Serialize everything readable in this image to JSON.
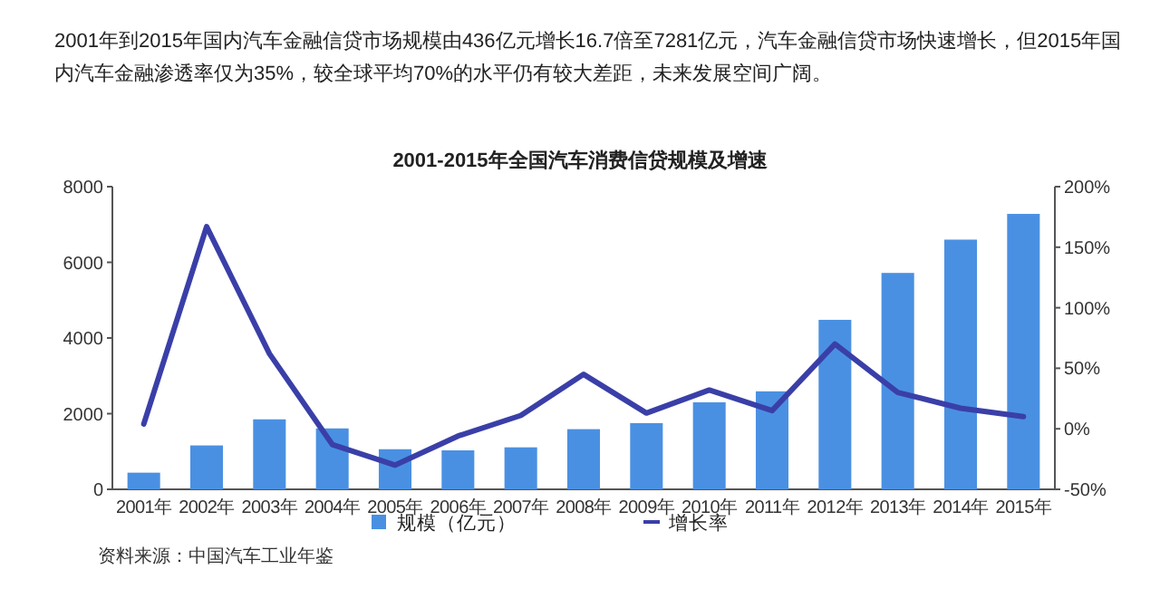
{
  "chart_data": {
    "type": "bar",
    "title": "2001-2015年全国汽车消费信贷规模及增速",
    "annotations": [
      "2001年到2015年国内汽车金融信贷市场规模由436亿元增长16.7倍至7281亿元，汽车金融信贷市场快速增长，但2015年国内汽车金融渗透率仅为35%，较全球平均70%的水平仍有较大差距，未来发展空间广阔。",
      "资料来源：中国汽车工业年鉴"
    ],
    "categories": [
      "2001年",
      "2002年",
      "2003年",
      "2004年",
      "2005年",
      "2006年",
      "2007年",
      "2008年",
      "2009年",
      "2010年",
      "2011年",
      "2012年",
      "2013年",
      "2014年",
      "2015年"
    ],
    "series": [
      {
        "name": "规模（亿元）",
        "color": "#4a90e2",
        "values": [
          440,
          1160,
          1850,
          1610,
          1060,
          1030,
          1110,
          1590,
          1750,
          2300,
          2590,
          4480,
          5720,
          6600,
          7280
        ]
      },
      {
        "name": "增长率",
        "type": "line",
        "axis": "y2",
        "color": "#3a3fa8",
        "values": [
          4,
          167,
          62,
          -13,
          -30,
          -6,
          11,
          45,
          13,
          32,
          15,
          70,
          30,
          17,
          10
        ]
      }
    ],
    "ylim": [
      0,
      8000
    ],
    "yticks": [
      0,
      2000,
      4000,
      6000,
      8000
    ],
    "y2lim": [
      -50,
      200
    ],
    "y2ticks": [
      {
        "value": -50,
        "label": "-50%"
      },
      {
        "value": 0,
        "label": "0%"
      },
      {
        "value": 50,
        "label": "50%"
      },
      {
        "value": 100,
        "label": "100%"
      },
      {
        "value": 150,
        "label": "150%"
      },
      {
        "value": 200,
        "label": "200%"
      }
    ],
    "legend": "bottom",
    "grid": false
  }
}
